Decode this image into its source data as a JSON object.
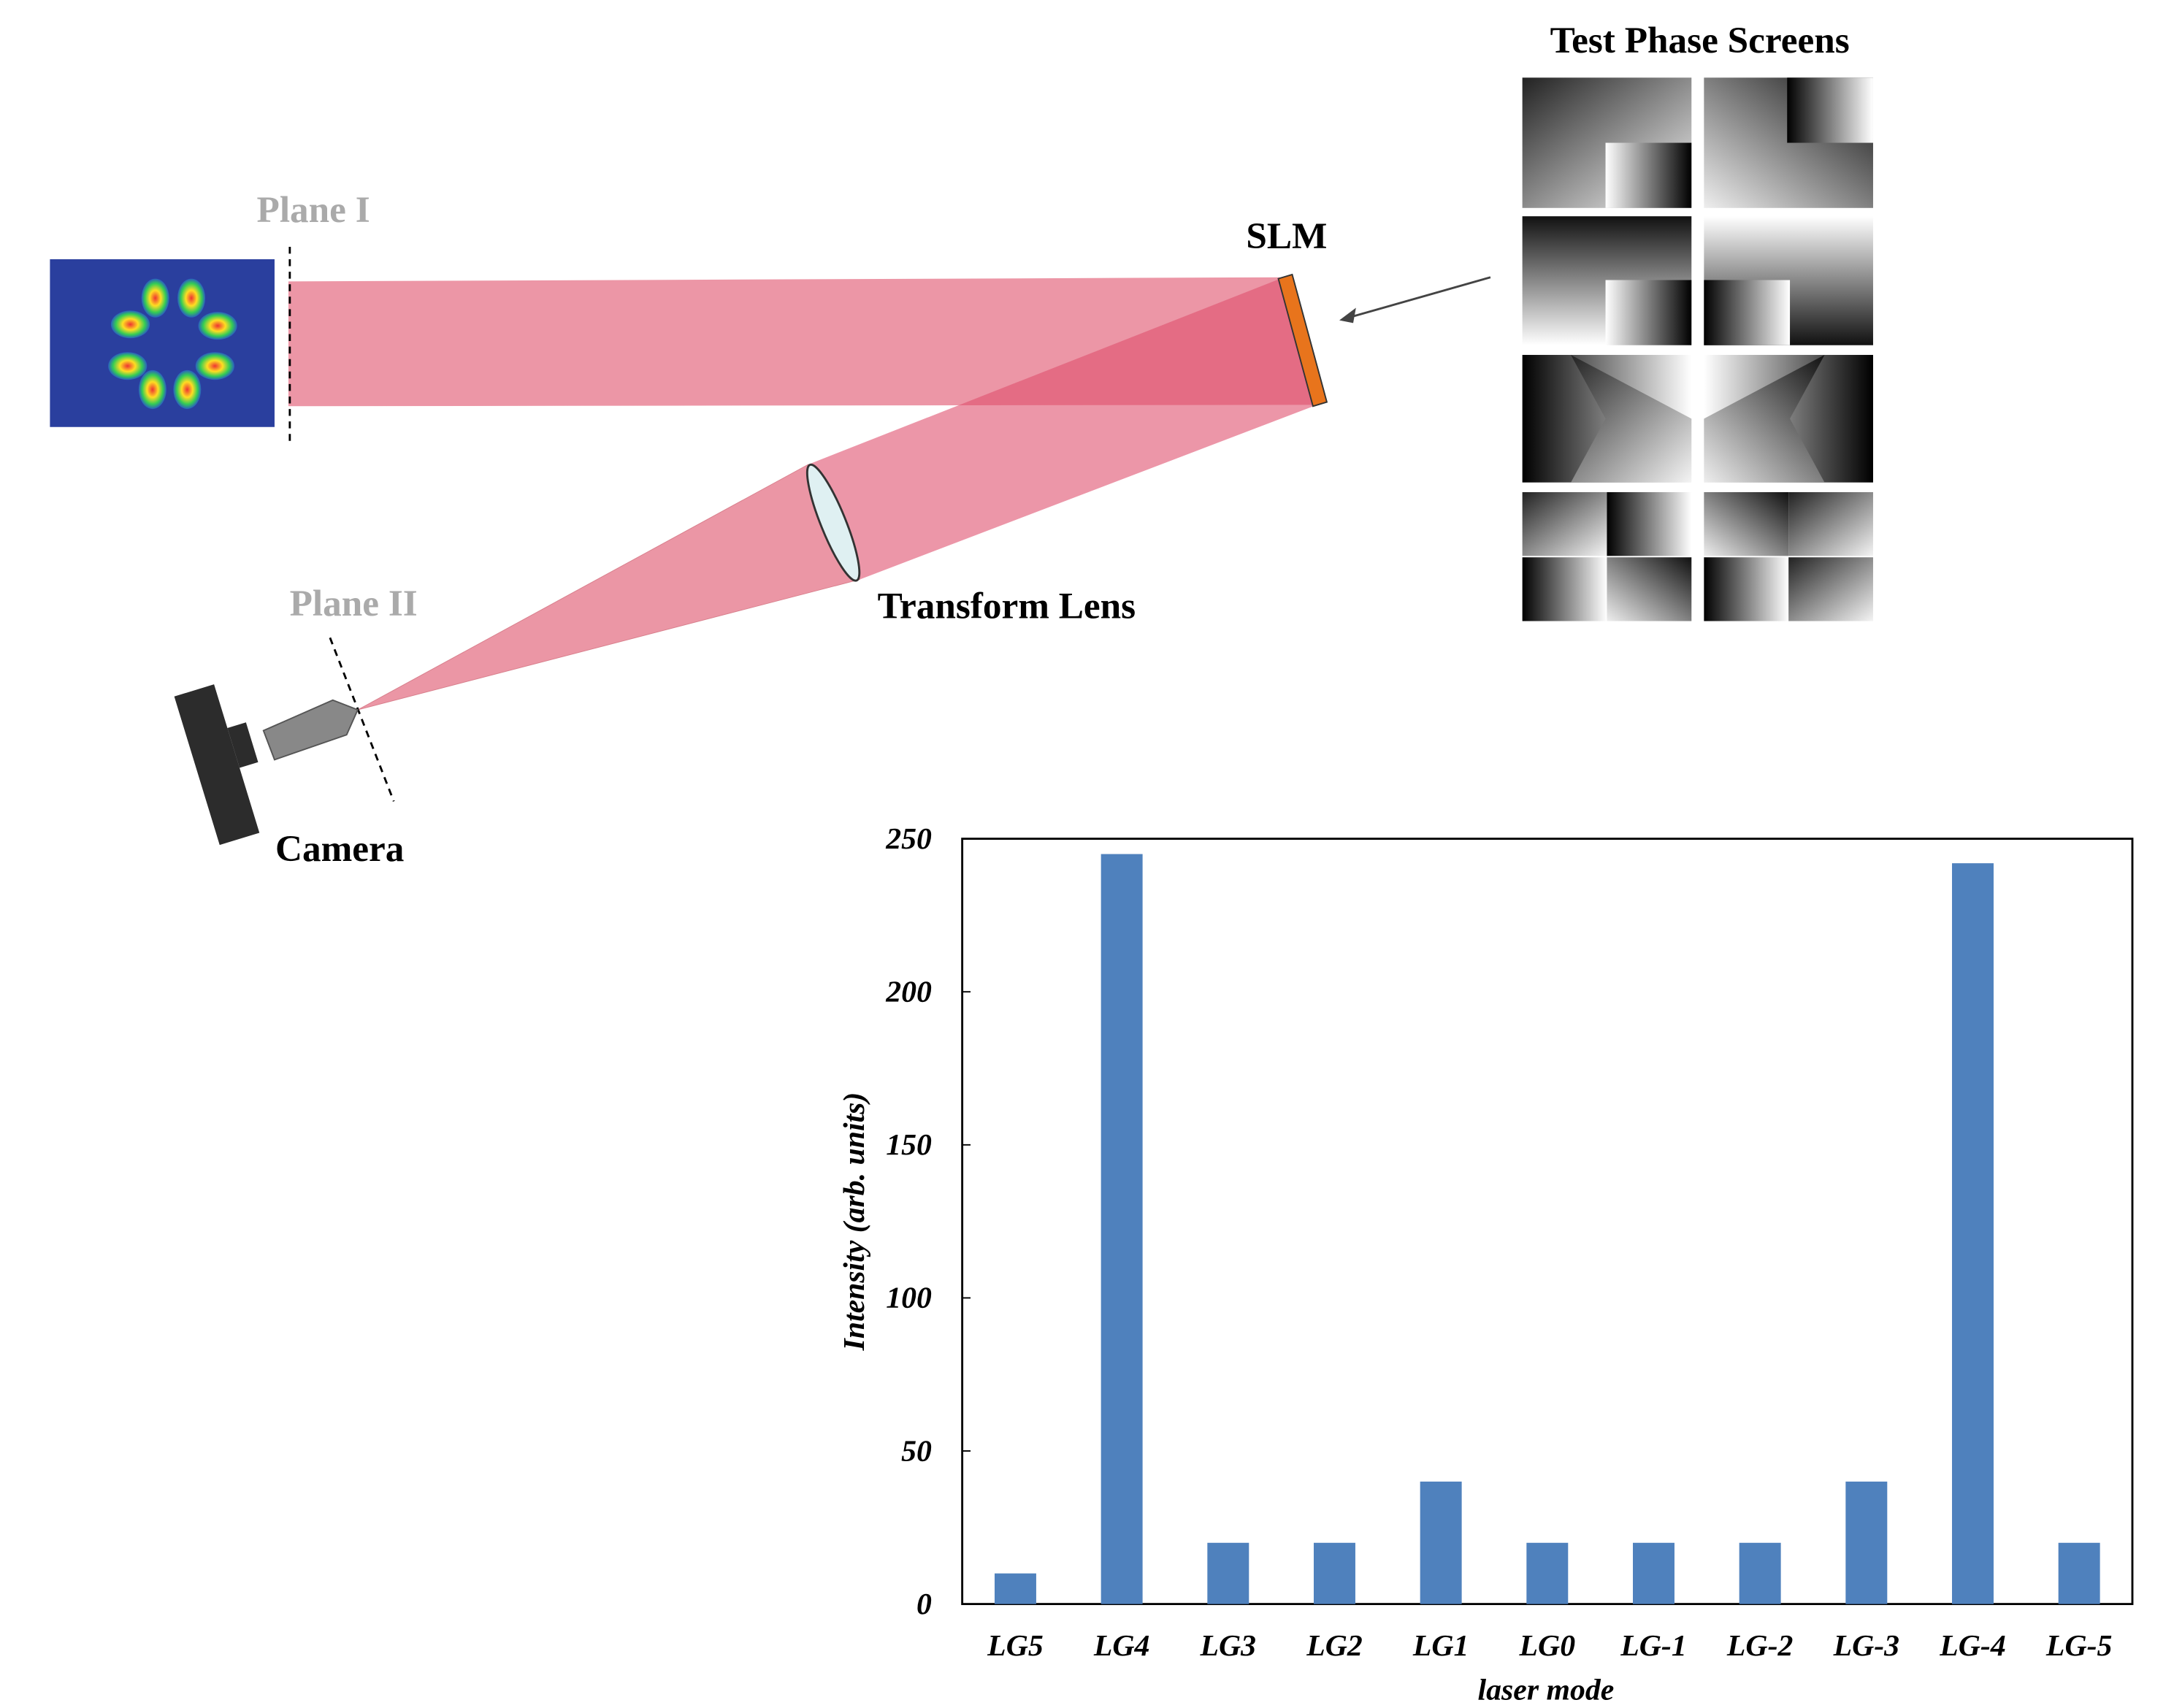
{
  "diagram": {
    "plane_1": "Plane I",
    "plane_2": "Plane II",
    "slm": "SLM",
    "lens": "Transform Lens",
    "camera": "Camera",
    "screens_title": "Test Phase Screens"
  },
  "chart_data": {
    "type": "bar",
    "x_label": "laser mode",
    "y_label": "Intensity (arb. units)",
    "categories": [
      "LG5",
      "LG4",
      "LG3",
      "LG2",
      "LG1",
      "LG0",
      "LG-1",
      "LG-2",
      "LG-3",
      "LG-4",
      "LG-5"
    ],
    "values": [
      10,
      245,
      20,
      20,
      40,
      20,
      20,
      20,
      40,
      242,
      20
    ],
    "color": "#4f81bd",
    "ylim": [
      0,
      250
    ],
    "yticks": [
      0,
      50,
      100,
      150,
      200,
      250
    ],
    "grid": false
  }
}
